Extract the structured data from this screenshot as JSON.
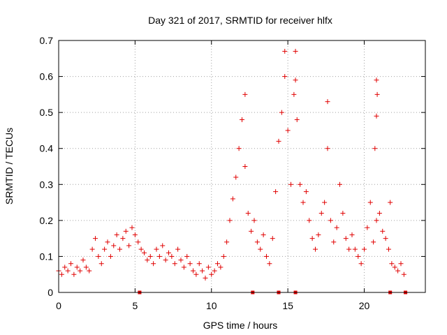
{
  "chart_data": {
    "type": "scatter",
    "title": "Day 321 of 2017, SRMTID for receiver hlfx",
    "xlabel": "GPS time / hours",
    "ylabel": "SRMTID / TECUs",
    "xlim": [
      0,
      24
    ],
    "ylim": [
      0,
      0.7
    ],
    "xticks": [
      0,
      5,
      10,
      15,
      20
    ],
    "yticks": [
      0,
      0.1,
      0.2,
      0.3,
      0.4,
      0.5,
      0.6,
      0.7
    ],
    "xtick_labels": [
      "0",
      "5",
      "10",
      "15",
      "20"
    ],
    "ytick_labels": [
      "0",
      "0.1",
      "0.2",
      "0.3",
      "0.4",
      "0.5",
      "0.6",
      "0.7"
    ],
    "grid": true,
    "marker": "+",
    "color": "#e00000",
    "series": [
      {
        "name": "SRMTID",
        "x": [
          0.0,
          0.2,
          0.4,
          0.6,
          0.8,
          1.0,
          1.2,
          1.4,
          1.6,
          1.8,
          2.0,
          2.2,
          2.4,
          2.6,
          2.8,
          3.0,
          3.2,
          3.4,
          3.6,
          3.8,
          4.0,
          4.2,
          4.4,
          4.6,
          4.8,
          5.0,
          5.2,
          5.4,
          5.6,
          5.8,
          6.0,
          6.2,
          6.4,
          6.6,
          6.8,
          7.0,
          7.2,
          7.4,
          7.6,
          7.8,
          8.0,
          8.2,
          8.4,
          8.6,
          8.8,
          9.0,
          9.2,
          9.4,
          9.6,
          9.8,
          10.0,
          10.2,
          10.4,
          10.6,
          10.8,
          11.0,
          11.2,
          11.4,
          11.6,
          11.8,
          12.0,
          12.2,
          12.4,
          12.6,
          12.8,
          13.0,
          13.2,
          13.4,
          13.6,
          13.8,
          14.0,
          14.2,
          14.4,
          14.6,
          14.8,
          15.0,
          15.2,
          15.4,
          15.6,
          15.8,
          16.0,
          16.2,
          16.4,
          16.6,
          16.8,
          17.0,
          17.2,
          17.4,
          17.6,
          17.8,
          18.0,
          18.2,
          18.4,
          18.6,
          18.8,
          19.0,
          19.2,
          19.4,
          19.6,
          19.8,
          20.0,
          20.2,
          20.4,
          20.6,
          20.8,
          21.0,
          21.2,
          21.4,
          21.6,
          21.8,
          22.0,
          22.2,
          22.4,
          22.6
        ],
        "y": [
          0.06,
          0.05,
          0.07,
          0.06,
          0.08,
          0.05,
          0.07,
          0.06,
          0.09,
          0.07,
          0.06,
          0.12,
          0.15,
          0.1,
          0.08,
          0.12,
          0.14,
          0.1,
          0.13,
          0.16,
          0.12,
          0.15,
          0.17,
          0.13,
          0.18,
          0.16,
          0.14,
          0.12,
          0.11,
          0.09,
          0.1,
          0.08,
          0.12,
          0.1,
          0.13,
          0.09,
          0.11,
          0.1,
          0.08,
          0.12,
          0.09,
          0.07,
          0.1,
          0.08,
          0.06,
          0.05,
          0.08,
          0.06,
          0.04,
          0.07,
          0.05,
          0.06,
          0.08,
          0.07,
          0.1,
          0.14,
          0.2,
          0.26,
          0.32,
          0.4,
          0.48,
          0.35,
          0.22,
          0.17,
          0.2,
          0.14,
          0.12,
          0.16,
          0.1,
          0.08,
          0.15,
          0.28,
          0.42,
          0.5,
          0.6,
          0.45,
          0.3,
          0.55,
          0.48,
          0.3,
          0.25,
          0.28,
          0.2,
          0.15,
          0.12,
          0.16,
          0.22,
          0.25,
          0.4,
          0.2,
          0.14,
          0.18,
          0.3,
          0.22,
          0.15,
          0.12,
          0.16,
          0.12,
          0.1,
          0.08,
          0.12,
          0.18,
          0.25,
          0.14,
          0.2,
          0.22,
          0.17,
          0.15,
          0.12,
          0.08,
          0.07,
          0.06,
          0.08,
          0.05
        ],
        "spikes": [
          {
            "x": 12.2,
            "y": 0.55
          },
          {
            "x": 14.8,
            "y": 0.67
          },
          {
            "x": 15.5,
            "y": 0.67
          },
          {
            "x": 15.5,
            "y": 0.59
          },
          {
            "x": 17.6,
            "y": 0.53
          },
          {
            "x": 20.8,
            "y": 0.59
          },
          {
            "x": 20.85,
            "y": 0.55
          },
          {
            "x": 20.8,
            "y": 0.49
          },
          {
            "x": 20.7,
            "y": 0.4
          },
          {
            "x": 21.7,
            "y": 0.25
          }
        ]
      }
    ],
    "gap_markers": [
      5.3,
      12.7,
      14.4,
      15.5,
      21.7,
      22.7
    ]
  }
}
